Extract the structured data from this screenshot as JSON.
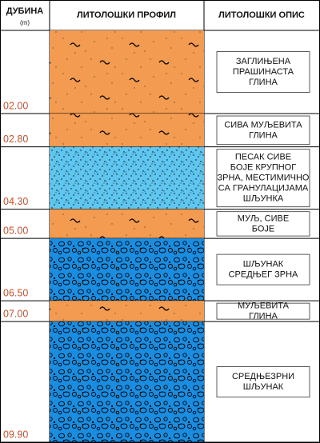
{
  "header": {
    "depth": "ДУБИНА",
    "unit": "(m)",
    "profile": "ЛИТОЛОШКИ ПРОФИЛ",
    "description": "ЛИТОЛОШКИ ОПИС"
  },
  "layers": [
    {
      "depth": {
        "value": 2.0,
        "label": "02.00"
      },
      "color": "#f39b50",
      "description": [
        "ЗАГЛИЊЕНА",
        "ПРАШИНАСТА",
        "ГЛИНА"
      ]
    },
    {
      "depth": {
        "value": 2.8,
        "label": "02.80"
      },
      "color": "#f39b50",
      "description": [
        "СИВА МУЉЕВИТА",
        "ГЛИНА"
      ]
    },
    {
      "depth": {
        "value": 4.3,
        "label": "04.30"
      },
      "color": "#5fc6ef",
      "description": [
        "ПЕСАК СИВЕ",
        "БОЈЕ КРУПНОГ",
        "ЗРНА, МЕСТИМИЧНО",
        "СА ГРАНУЛАЦИЈАМА",
        "ШЉУНКА"
      ]
    },
    {
      "depth": {
        "value": 5.0,
        "label": "05.00"
      },
      "color": "#f39b50",
      "description": [
        "МУЉ, СИВЕ",
        "БОЈЕ"
      ]
    },
    {
      "depth": {
        "value": 6.5,
        "label": "06.50"
      },
      "color": "#1a8de0",
      "description": [
        "ШЉУНАК",
        "СРЕДЊЕГ ЗРНА"
      ]
    },
    {
      "depth": {
        "value": 7.0,
        "label": "07.00"
      },
      "color": "#f39b50",
      "description": [
        "МУЉЕВИТА",
        "ГЛИНА"
      ]
    },
    {
      "depth": {
        "value": 9.9,
        "label": "09.90"
      },
      "color": "#1a8de0",
      "description": [
        "СРЕДЊЕЗРНИ",
        "ШЉУНАК"
      ]
    }
  ]
}
